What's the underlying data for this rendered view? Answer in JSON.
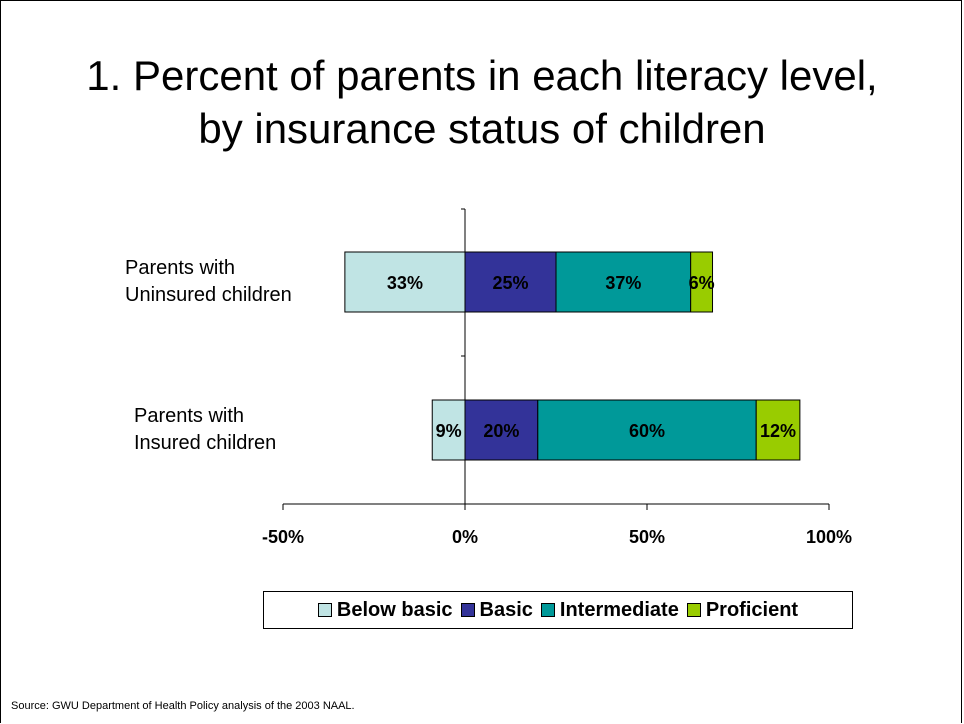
{
  "title_lines": [
    "1. Percent of parents in each literacy level,",
    "by insurance status of children"
  ],
  "source": "Source: GWU Department of Health Policy analysis of the 2003 NAAL.",
  "chart_data": {
    "type": "bar",
    "orientation": "horizontal",
    "stacked": true,
    "diverging": true,
    "categories": [
      "Parents with Uninsured children",
      "Parents with Insured children"
    ],
    "category_label_lines": [
      [
        "Parents with",
        "Uninsured children"
      ],
      [
        "Parents with",
        "Insured children"
      ]
    ],
    "xlim": [
      -50,
      100
    ],
    "xticks": [
      -50,
      0,
      50,
      100
    ],
    "xtick_labels": [
      "-50%",
      "0%",
      "50%",
      "100%"
    ],
    "series": [
      {
        "name": "Below basic",
        "color": "#c0e4e4",
        "values": [
          33,
          9
        ],
        "labels": [
          "33%",
          "9%"
        ],
        "negative": true
      },
      {
        "name": "Basic",
        "color": "#333399",
        "values": [
          25,
          20
        ],
        "labels": [
          "25%",
          "20%"
        ]
      },
      {
        "name": "Intermediate",
        "color": "#009999",
        "values": [
          37,
          60
        ],
        "labels": [
          "37%",
          "60%"
        ]
      },
      {
        "name": "Proficient",
        "color": "#99cc00",
        "values": [
          6,
          12
        ],
        "labels": [
          "6%",
          "12%"
        ]
      }
    ],
    "legend_position": "bottom",
    "grid": false
  }
}
